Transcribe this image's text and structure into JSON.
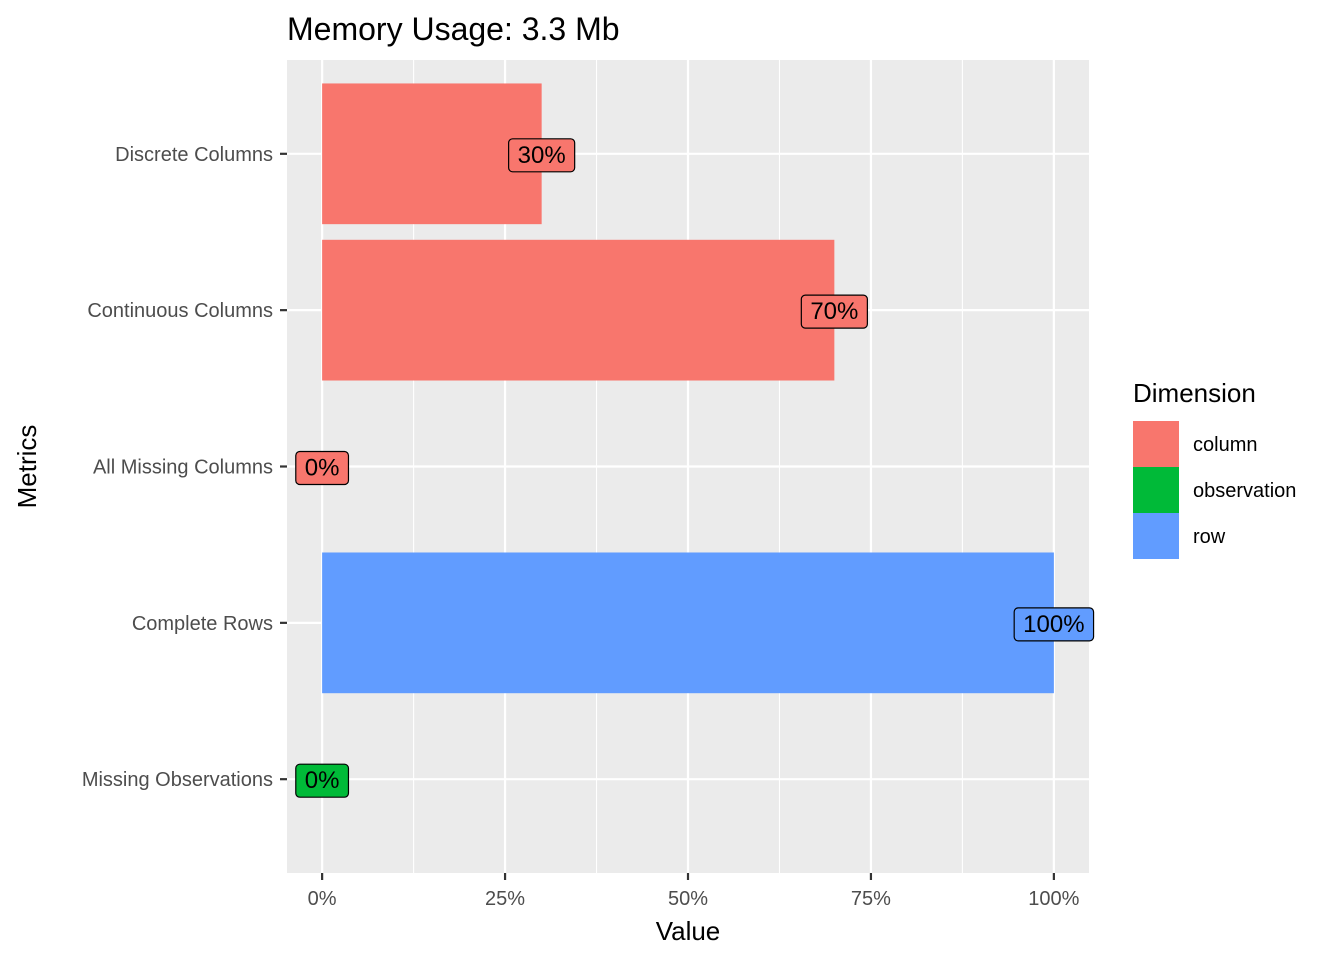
{
  "chart_data": {
    "type": "bar",
    "orientation": "horizontal",
    "title": "Memory Usage: 3.3 Mb",
    "xlabel": "Value",
    "ylabel": "Metrics",
    "xlim": [
      -0.048,
      1.048
    ],
    "x_ticks": [
      0,
      0.25,
      0.5,
      0.75,
      1.0
    ],
    "x_tick_labels": [
      "0%",
      "25%",
      "50%",
      "75%",
      "100%"
    ],
    "grid": true,
    "legend": {
      "title": "Dimension",
      "position": "right",
      "items": [
        {
          "label": "column",
          "color": "#F8766D"
        },
        {
          "label": "observation",
          "color": "#00BA38"
        },
        {
          "label": "row",
          "color": "#619CFF"
        }
      ]
    },
    "categories": [
      "Discrete Columns",
      "Continuous Columns",
      "All Missing Columns",
      "Complete Rows",
      "Missing Observations"
    ],
    "bars": [
      {
        "category": "Discrete Columns",
        "value": 0.3,
        "label": "30%",
        "dimension": "column"
      },
      {
        "category": "Continuous Columns",
        "value": 0.7,
        "label": "70%",
        "dimension": "column"
      },
      {
        "category": "All Missing Columns",
        "value": 0.0,
        "label": "0%",
        "dimension": "column"
      },
      {
        "category": "Complete Rows",
        "value": 1.0,
        "label": "100%",
        "dimension": "row"
      },
      {
        "category": "Missing Observations",
        "value": 0.0,
        "label": "0%",
        "dimension": "observation"
      }
    ],
    "colors": {
      "panel_bg": "#EBEBEB",
      "grid": "#FFFFFF"
    }
  }
}
